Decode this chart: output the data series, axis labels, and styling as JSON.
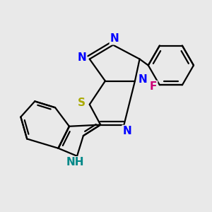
{
  "bg_color": "#e9e9e9",
  "bond_color": "#000000",
  "bond_width": 1.6,
  "atom_colors": {
    "N": "#0000ff",
    "N_indole": "#008888",
    "S": "#aaaa00",
    "F": "#cc0077"
  }
}
